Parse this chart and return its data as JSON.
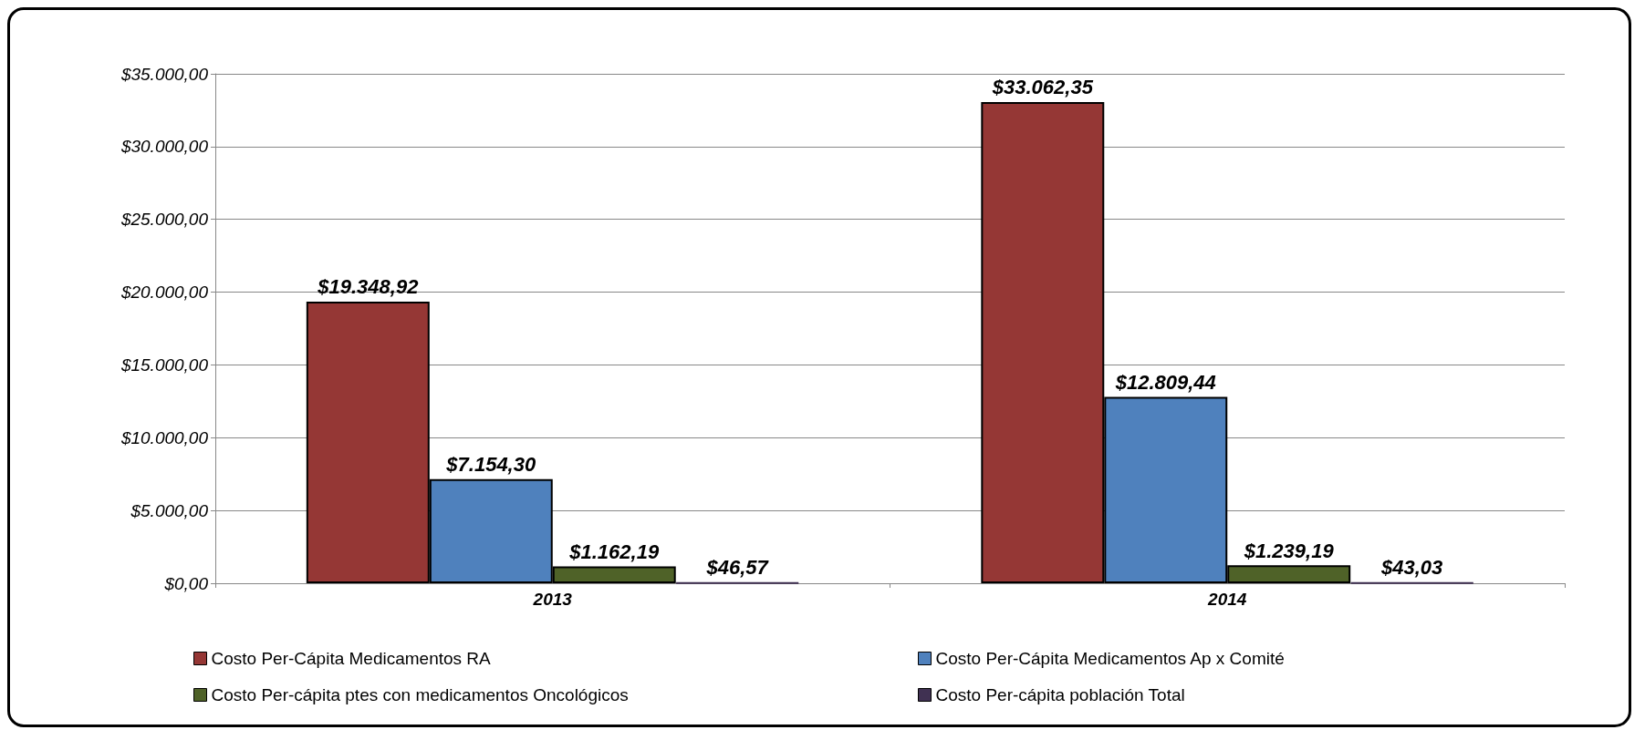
{
  "chart_data": {
    "type": "bar",
    "categories": [
      "2013",
      "2014"
    ],
    "series": [
      {
        "name": "Costo Per-Cápita Medicamentos RA",
        "color": "#953735",
        "values": [
          19348.92,
          33062.35
        ],
        "value_labels": [
          "$19.348,92",
          "$33.062,35"
        ]
      },
      {
        "name": "Costo Per-Cápita Medicamentos Ap x Comité",
        "color": "#4f81bd",
        "values": [
          7154.3,
          12809.44
        ],
        "value_labels": [
          "$7.154,30",
          "$12.809,44"
        ]
      },
      {
        "name": "Costo Per-cápita ptes con medicamentos Oncológicos",
        "color": "#4f6228",
        "values": [
          1162.19,
          1239.19
        ],
        "value_labels": [
          "$1.162,19",
          "$1.239,19"
        ]
      },
      {
        "name": "Costo Per-cápita población Total",
        "color": "#403152",
        "values": [
          46.57,
          43.03
        ],
        "value_labels": [
          "$46,57",
          "$43,03"
        ]
      }
    ],
    "ylim": [
      0,
      35000
    ],
    "yticks": [
      {
        "value": 0,
        "label": "$0,00"
      },
      {
        "value": 5000,
        "label": "$5.000,00"
      },
      {
        "value": 10000,
        "label": "$10.000,00"
      },
      {
        "value": 15000,
        "label": "$15.000,00"
      },
      {
        "value": 20000,
        "label": "$20.000,00"
      },
      {
        "value": 25000,
        "label": "$25.000,00"
      },
      {
        "value": 30000,
        "label": "$30.000,00"
      },
      {
        "value": 35000,
        "label": "$35.000,00"
      }
    ],
    "grid": "y",
    "legend": "bottom"
  }
}
